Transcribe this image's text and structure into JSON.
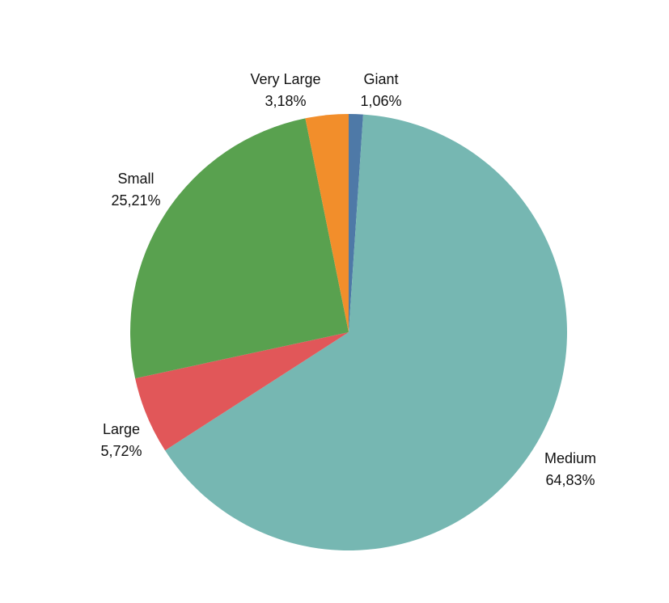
{
  "chart_data": {
    "type": "pie",
    "title": "",
    "slices": [
      {
        "name": "Giant",
        "value": 1.06,
        "label": "1,06%",
        "color": "#4e79a7"
      },
      {
        "name": "Medium",
        "value": 64.83,
        "label": "64,83%",
        "color": "#76b7b2"
      },
      {
        "name": "Large",
        "value": 5.72,
        "label": "5,72%",
        "color": "#e15759"
      },
      {
        "name": "Small",
        "value": 25.21,
        "label": "25,21%",
        "color": "#59a14f"
      },
      {
        "name": "Very Large",
        "value": 3.18,
        "label": "3,18%",
        "color": "#f28e2b"
      }
    ],
    "start_angle": "12 o'clock",
    "direction": "clockwise",
    "legend": "none"
  }
}
